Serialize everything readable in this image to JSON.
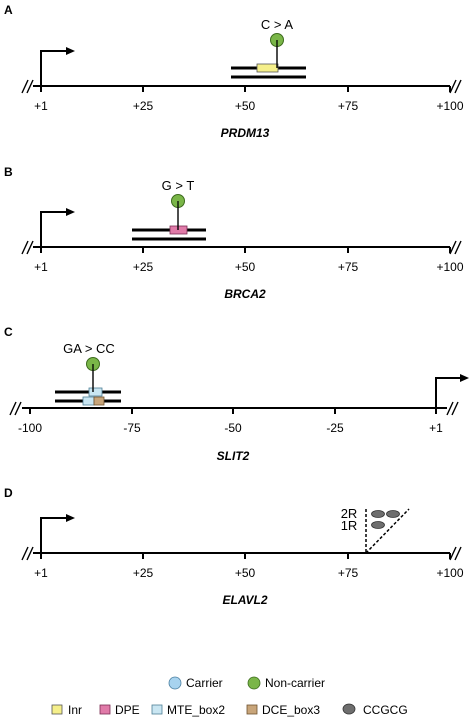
{
  "panels": [
    {
      "id": "A",
      "gene": "PRDM13",
      "ticks": [
        "+1",
        "+25",
        "+50",
        "+75",
        "+100"
      ],
      "mutation": "C > A",
      "mutation_status": "Non-carrier",
      "elements": [
        "Inr"
      ]
    },
    {
      "id": "B",
      "gene": "BRCA2",
      "ticks": [
        "+1",
        "+25",
        "+50",
        "+75",
        "+100"
      ],
      "mutation": "G > T",
      "mutation_status": "Non-carrier",
      "elements": [
        "DPE"
      ]
    },
    {
      "id": "C",
      "gene": "SLIT2",
      "ticks": [
        "-100",
        "-75",
        "-50",
        "-25",
        "+1"
      ],
      "mutation": "GA > CC",
      "mutation_status": "Non-carrier",
      "elements": [
        "MTE_box2",
        "DCE_box3"
      ]
    },
    {
      "id": "D",
      "gene": "ELAVL2",
      "ticks": [
        "+1",
        "+25",
        "+50",
        "+75",
        "+100"
      ],
      "repeat_labels": [
        "2R",
        "1R"
      ],
      "elements": [
        "CCGCG"
      ]
    }
  ],
  "legend": {
    "status": [
      {
        "label": "Carrier",
        "color": "#a7d3ef"
      },
      {
        "label": "Non-carrier",
        "color": "#7ab648"
      }
    ],
    "elements": [
      {
        "label": "Inr",
        "color": "#f5ef8a"
      },
      {
        "label": "DPE",
        "color": "#e07aa8"
      },
      {
        "label": "MTE_box2",
        "color": "#c9e6f2"
      },
      {
        "label": "DCE_box3",
        "color": "#c8a57a"
      },
      {
        "label": "CCGCG",
        "color": "#6e6e6e"
      }
    ]
  }
}
